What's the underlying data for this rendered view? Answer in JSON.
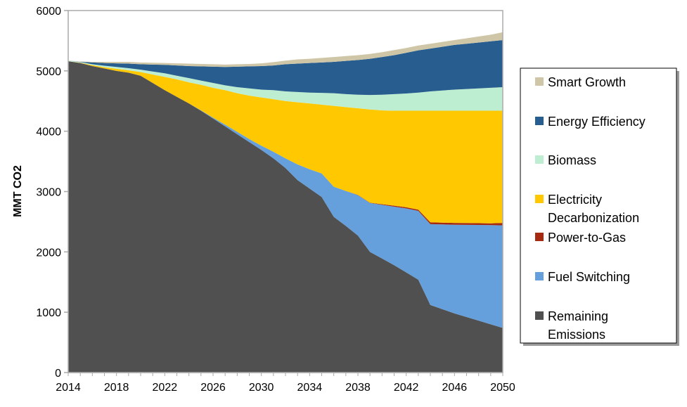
{
  "chart_data": {
    "type": "area",
    "stacked": true,
    "title": "",
    "xlabel": "",
    "ylabel": "MMT CO2",
    "xlim": [
      2014,
      2050
    ],
    "ylim": [
      0,
      6000
    ],
    "yticks": [
      0,
      1000,
      2000,
      3000,
      4000,
      5000,
      6000
    ],
    "xtick_labels": [
      "2014",
      "2018",
      "2022",
      "2026",
      "2030",
      "2034",
      "2038",
      "2042",
      "2046",
      "2050"
    ],
    "grid": false,
    "legend_position": "right",
    "x": [
      2014,
      2015,
      2016,
      2017,
      2018,
      2019,
      2020,
      2021,
      2022,
      2023,
      2024,
      2025,
      2026,
      2027,
      2028,
      2029,
      2030,
      2031,
      2032,
      2033,
      2034,
      2035,
      2036,
      2037,
      2038,
      2039,
      2040,
      2041,
      2042,
      2043,
      2044,
      2045,
      2046,
      2047,
      2048,
      2049,
      2050
    ],
    "series": [
      {
        "name": "Remaining Emissions",
        "color": "#505050",
        "values": [
          5160,
          5130,
          5080,
          5040,
          5000,
          4970,
          4920,
          4800,
          4680,
          4570,
          4460,
          4340,
          4210,
          4080,
          3950,
          3820,
          3690,
          3550,
          3390,
          3190,
          3050,
          2910,
          2580,
          2430,
          2270,
          2000,
          1890,
          1780,
          1660,
          1540,
          1120,
          1050,
          980,
          920,
          860,
          800,
          740
        ]
      },
      {
        "name": "Fuel Switching",
        "color": "#65A0DC",
        "values": [
          0,
          0,
          0,
          0,
          0,
          0,
          0,
          0,
          0,
          0,
          0,
          5,
          15,
          30,
          40,
          50,
          70,
          110,
          160,
          260,
          320,
          390,
          500,
          580,
          670,
          810,
          890,
          970,
          1060,
          1140,
          1340,
          1405,
          1470,
          1528,
          1586,
          1643,
          1700
        ]
      },
      {
        "name": "Power-to-Gas",
        "color": "#A52A10",
        "values": [
          0,
          0,
          0,
          0,
          0,
          0,
          0,
          0,
          0,
          0,
          0,
          0,
          0,
          0,
          0,
          0,
          0,
          0,
          0,
          0,
          0,
          0,
          0,
          0,
          5,
          5,
          10,
          15,
          20,
          20,
          30,
          30,
          30,
          30,
          30,
          30,
          40
        ]
      },
      {
        "name": "Electricity Decarbonization",
        "color": "#FFC800",
        "values": [
          0,
          5,
          15,
          20,
          35,
          40,
          60,
          140,
          220,
          290,
          350,
          425,
          495,
          570,
          640,
          720,
          800,
          870,
          950,
          1030,
          1090,
          1140,
          1340,
          1390,
          1435,
          1545,
          1555,
          1575,
          1600,
          1640,
          1850,
          1855,
          1860,
          1862,
          1864,
          1867,
          1860
        ]
      },
      {
        "name": "Biomass",
        "color": "#BEEED2",
        "values": [
          10,
          10,
          15,
          25,
          30,
          35,
          40,
          50,
          60,
          60,
          70,
          70,
          80,
          80,
          100,
          120,
          130,
          150,
          160,
          170,
          180,
          195,
          210,
          215,
          225,
          240,
          260,
          275,
          285,
          300,
          320,
          335,
          350,
          360,
          370,
          380,
          390
        ]
      },
      {
        "name": "Energy Efficiency",
        "color": "#285D8F",
        "values": [
          0,
          5,
          30,
          45,
          60,
          75,
          90,
          115,
          140,
          170,
          200,
          235,
          270,
          305,
          340,
          365,
          390,
          410,
          450,
          470,
          490,
          505,
          520,
          550,
          575,
          600,
          625,
          645,
          675,
          700,
          710,
          725,
          740,
          750,
          760,
          770,
          780
        ]
      },
      {
        "name": "Smart Growth",
        "color": "#CEC6A6",
        "values": [
          0,
          5,
          10,
          20,
          25,
          30,
          30,
          30,
          30,
          35,
          40,
          40,
          40,
          40,
          40,
          40,
          45,
          55,
          60,
          70,
          70,
          75,
          80,
          80,
          80,
          80,
          80,
          85,
          80,
          80,
          80,
          80,
          80,
          90,
          100,
          110,
          130
        ]
      }
    ]
  }
}
